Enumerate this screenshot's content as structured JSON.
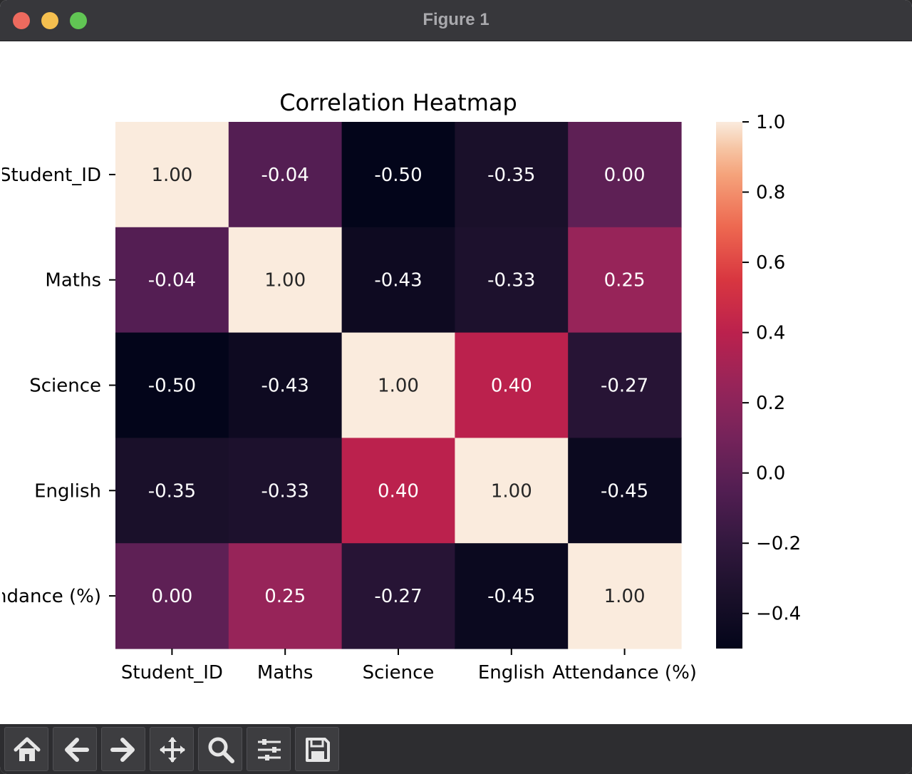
{
  "window": {
    "title": "Figure 1"
  },
  "toolbar": {
    "buttons": [
      {
        "icon": "home-icon"
      },
      {
        "icon": "back-arrow-icon"
      },
      {
        "icon": "forward-arrow-icon"
      },
      {
        "icon": "pan-move-icon"
      },
      {
        "icon": "zoom-magnifier-icon"
      },
      {
        "icon": "configure-sliders-icon"
      },
      {
        "icon": "save-floppy-icon"
      }
    ]
  },
  "chart_data": {
    "type": "heatmap",
    "title": "Correlation Heatmap",
    "x_labels": [
      "Student_ID",
      "Maths",
      "Science",
      "English",
      "Attendance (%)"
    ],
    "y_labels": [
      "Student_ID",
      "Maths",
      "Science",
      "English",
      "Attendance (%)"
    ],
    "values": [
      [
        1.0,
        -0.04,
        -0.5,
        -0.35,
        0.0
      ],
      [
        -0.04,
        1.0,
        -0.43,
        -0.33,
        0.25
      ],
      [
        -0.5,
        -0.43,
        1.0,
        0.4,
        -0.27
      ],
      [
        -0.35,
        -0.33,
        0.4,
        1.0,
        -0.45
      ],
      [
        0.0,
        0.25,
        -0.27,
        -0.45,
        1.0
      ]
    ],
    "annotations": [
      [
        "1.00",
        "-0.04",
        "-0.50",
        "-0.35",
        "0.00"
      ],
      [
        "-0.04",
        "1.00",
        "-0.43",
        "-0.33",
        "0.25"
      ],
      [
        "-0.50",
        "-0.43",
        "1.00",
        "0.40",
        "-0.27"
      ],
      [
        "-0.35",
        "-0.33",
        "0.40",
        "1.00",
        "-0.45"
      ],
      [
        "0.00",
        "0.25",
        "-0.27",
        "-0.45",
        "1.00"
      ]
    ],
    "colormap": "rocket",
    "vmin": -0.5,
    "vmax": 1.0,
    "colorbar_ticks": [
      1.0,
      0.8,
      0.6,
      0.4,
      0.2,
      0.0,
      -0.2,
      -0.4
    ],
    "colorbar_tick_labels": [
      "1.0",
      "0.8",
      "0.6",
      "0.4",
      "0.2",
      "0.0",
      "−0.2",
      "−0.4"
    ]
  }
}
